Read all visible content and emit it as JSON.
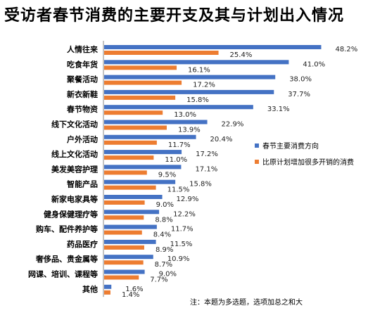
{
  "chart_data": {
    "type": "bar",
    "orientation": "horizontal",
    "title": "受访者春节消费的主要开支及其与计划出入情况",
    "note": "注：本题为多选题，选项加总之和大",
    "categories": [
      "人情往来",
      "吃食年货",
      "聚餐活动",
      "新衣新鞋",
      "春节物资",
      "线下文化活动",
      "户外活动",
      "线上文化活动",
      "美发美容护理",
      "智能产品",
      "新家电家具等",
      "健身保健理疗等",
      "购车、配件养护等",
      "药品医疗",
      "奢侈品、贵金属等",
      "网课、培训、课程等",
      "其他"
    ],
    "value_suffix": "%",
    "series": [
      {
        "name": "春节主要消费方向",
        "color": "#4472C4",
        "values": [
          48.2,
          41.0,
          38.0,
          37.7,
          33.1,
          22.9,
          20.4,
          17.2,
          17.1,
          15.8,
          12.9,
          12.2,
          11.7,
          11.5,
          10.9,
          9.0,
          1.6
        ]
      },
      {
        "name": "比原计划增加很多开销的消费",
        "color": "#ED7D31",
        "values": [
          25.4,
          16.1,
          17.2,
          15.8,
          13.0,
          13.9,
          11.7,
          11.0,
          9.5,
          11.5,
          9.0,
          8.8,
          8.4,
          8.9,
          8.7,
          7.7,
          1.4
        ]
      }
    ],
    "xlim": [
      0,
      50
    ],
    "legend_position": "right",
    "grid": false
  }
}
